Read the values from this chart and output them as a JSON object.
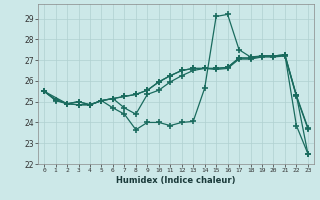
{
  "bg_color": "#cce8e8",
  "grid_color": "#b0d0d0",
  "line_color": "#1a6b5e",
  "line_width": 0.9,
  "marker": "+",
  "marker_size": 4,
  "xlabel": "Humidex (Indice chaleur)",
  "xlim": [
    -0.5,
    23.5
  ],
  "ylim": [
    22,
    29.7
  ],
  "yticks": [
    22,
    23,
    24,
    25,
    26,
    27,
    28,
    29
  ],
  "xticks": [
    0,
    1,
    2,
    3,
    4,
    5,
    6,
    7,
    8,
    9,
    10,
    11,
    12,
    13,
    14,
    15,
    16,
    17,
    18,
    19,
    20,
    21,
    22,
    23
  ],
  "series": [
    {
      "x": [
        0,
        1,
        2,
        3,
        4,
        5,
        6,
        7,
        8,
        9,
        10,
        11,
        12,
        13,
        14,
        15,
        16,
        17,
        18,
        19,
        20,
        21,
        22,
        23
      ],
      "y": [
        25.5,
        25.1,
        24.9,
        24.85,
        24.85,
        25.05,
        25.15,
        25.25,
        25.35,
        25.55,
        25.95,
        26.25,
        26.5,
        26.6,
        26.6,
        26.6,
        26.65,
        27.1,
        27.1,
        27.2,
        27.2,
        27.25,
        25.3,
        23.75
      ]
    },
    {
      "x": [
        0,
        1,
        2,
        3,
        4,
        5,
        6,
        7,
        8,
        9,
        10,
        11,
        12,
        13,
        14,
        15,
        16,
        17,
        18,
        19,
        20,
        21,
        22,
        23
      ],
      "y": [
        25.5,
        25.1,
        24.9,
        24.85,
        24.85,
        25.05,
        24.7,
        24.4,
        23.65,
        24.0,
        24.0,
        23.85,
        24.0,
        24.05,
        25.65,
        29.1,
        29.2,
        27.5,
        27.15,
        27.2,
        27.2,
        27.25,
        23.85,
        22.5
      ]
    },
    {
      "x": [
        0,
        2,
        3,
        4,
        5,
        6,
        7,
        8,
        9,
        10,
        11,
        12,
        13,
        14,
        15,
        16,
        17,
        18,
        19,
        20,
        21,
        22,
        23
      ],
      "y": [
        25.5,
        24.9,
        25.0,
        24.85,
        25.05,
        25.15,
        24.7,
        24.4,
        25.35,
        25.55,
        25.95,
        26.25,
        26.5,
        26.6,
        26.6,
        26.65,
        27.1,
        27.1,
        27.2,
        27.2,
        27.25,
        25.3,
        22.5
      ]
    },
    {
      "x": [
        0,
        1,
        2,
        3,
        4,
        5,
        6,
        7,
        8,
        9,
        10,
        11,
        12,
        13,
        14,
        15,
        16,
        17,
        18,
        19,
        20,
        21,
        22,
        23
      ],
      "y": [
        25.5,
        25.05,
        24.9,
        25.0,
        24.85,
        25.05,
        25.15,
        25.25,
        25.35,
        25.55,
        25.95,
        26.25,
        26.5,
        26.6,
        26.6,
        26.55,
        26.6,
        27.05,
        27.05,
        27.15,
        27.15,
        27.2,
        25.25,
        23.7
      ]
    }
  ]
}
